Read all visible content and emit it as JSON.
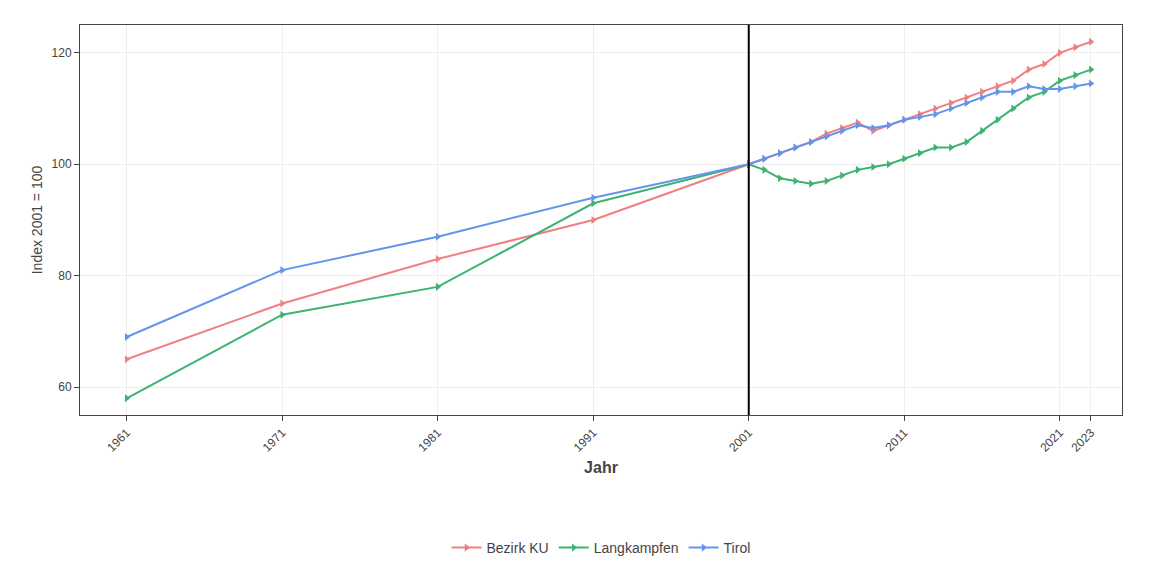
{
  "chart_data": {
    "type": "line",
    "xlabel": "Jahr",
    "ylabel": "Index 2001 = 100",
    "xlim": [
      1958,
      2025
    ],
    "ylim": [
      55,
      125
    ],
    "xticks": [
      1961,
      1971,
      1981,
      1991,
      2001,
      2011,
      2021,
      2023
    ],
    "yticks": [
      60,
      80,
      100,
      120
    ],
    "grid": true,
    "legend": "bottom",
    "marker": "triangle-right",
    "vline": 2001,
    "x": [
      1961,
      1971,
      1981,
      1991,
      2001,
      2002,
      2003,
      2004,
      2005,
      2006,
      2007,
      2008,
      2009,
      2010,
      2011,
      2012,
      2013,
      2014,
      2015,
      2016,
      2017,
      2018,
      2019,
      2020,
      2021,
      2022,
      2023
    ],
    "series": [
      {
        "name": "Bezirk KU",
        "color": "#F08080",
        "values": [
          65,
          75,
          83,
          90,
          100,
          101,
          102,
          103,
          104,
          105.5,
          106.5,
          107.5,
          106,
          107,
          108,
          109,
          110,
          111,
          112,
          113,
          114,
          115,
          117,
          118,
          120,
          121,
          122
        ]
      },
      {
        "name": "Langkampfen",
        "color": "#3cb371",
        "values": [
          58,
          73,
          78,
          93,
          100,
          99,
          97.5,
          97,
          96.5,
          97,
          98,
          99,
          99.5,
          100,
          101,
          102,
          103,
          103,
          104,
          106,
          108,
          110,
          112,
          113,
          115,
          116,
          117
        ]
      },
      {
        "name": "Tirol",
        "color": "#6495ED",
        "values": [
          69,
          81,
          87,
          94,
          100,
          101,
          102,
          103,
          104,
          105,
          106,
          107,
          106.5,
          107,
          108,
          108.5,
          109,
          110,
          111,
          112,
          113,
          113,
          114,
          113.5,
          113.5,
          114,
          114.5
        ]
      }
    ]
  }
}
